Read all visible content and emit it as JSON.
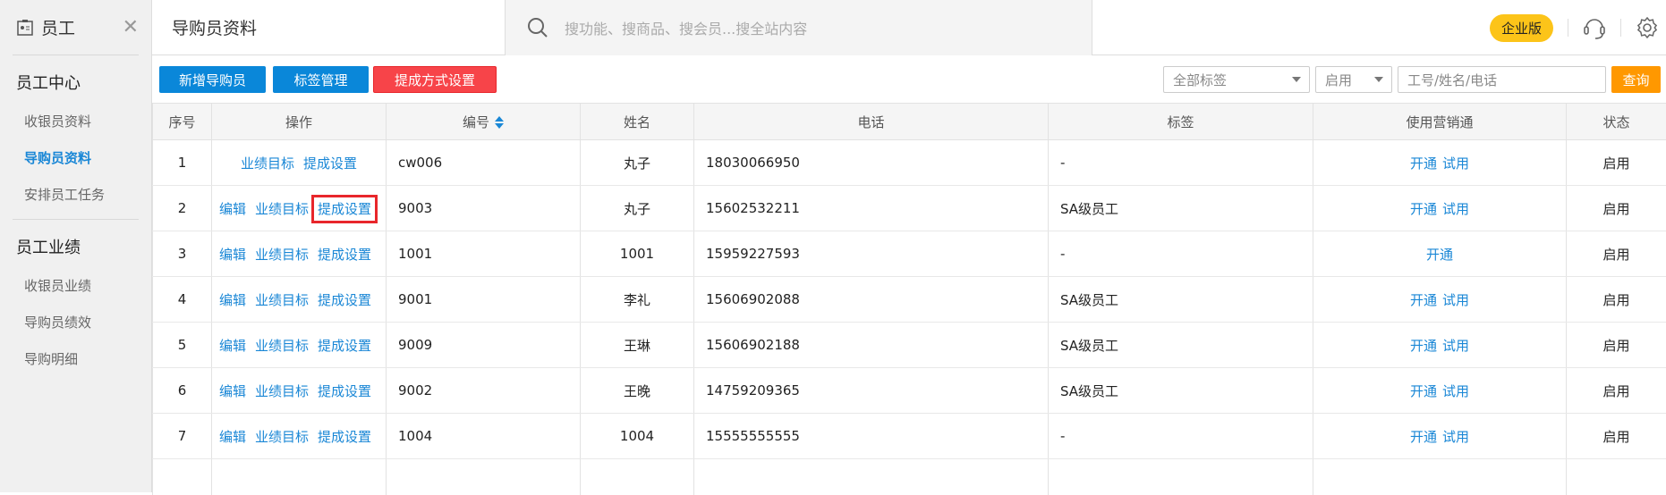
{
  "sidebar": {
    "title": "员工",
    "groups": [
      {
        "label": "员工中心",
        "items": [
          {
            "label": "收银员资料"
          },
          {
            "label": "导购员资料",
            "active": true
          },
          {
            "label": "安排员工任务"
          }
        ]
      },
      {
        "label": "员工业绩",
        "items": [
          {
            "label": "收银员业绩"
          },
          {
            "label": "导购员绩效"
          },
          {
            "label": "导购明细"
          }
        ]
      }
    ]
  },
  "header": {
    "title": "导购员资料",
    "search_placeholder": "搜功能、搜商品、搜会员...搜全站内容",
    "badge": "企业版"
  },
  "toolbar": {
    "add": "新增导购员",
    "tags": "标签管理",
    "commission": "提成方式设置",
    "tag_filter": "全部标签",
    "status_filter": "启用",
    "keyword_placeholder": "工号/姓名/电话",
    "query": "查询"
  },
  "colors": {
    "primary": "#0a87d9",
    "danger": "#f74449",
    "query": "#ff9800",
    "badge": "#fcc419",
    "link": "#1a87d6"
  },
  "table": {
    "headers": [
      "序号",
      "操作",
      "编号",
      "姓名",
      "电话",
      "标签",
      "使用营销通",
      "状态"
    ],
    "rows": [
      {
        "no": "1",
        "ops": [
          "业绩目标",
          "提成设置"
        ],
        "code": "cw006",
        "name": "丸子",
        "phone": "18030066950",
        "tag": "-",
        "mkt": [
          "开通",
          "试用"
        ],
        "status": "启用"
      },
      {
        "no": "2",
        "ops": [
          "编辑",
          "业绩目标",
          "提成设置"
        ],
        "code": "9003",
        "name": "丸子",
        "phone": "15602532211",
        "tag": "SA级员工",
        "mkt": [
          "开通",
          "试用"
        ],
        "status": "启用",
        "highlight": true
      },
      {
        "no": "3",
        "ops": [
          "编辑",
          "业绩目标",
          "提成设置"
        ],
        "code": "1001",
        "name": "1001",
        "phone": "15959227593",
        "tag": "-",
        "mkt": [
          "开通"
        ],
        "status": "启用"
      },
      {
        "no": "4",
        "ops": [
          "编辑",
          "业绩目标",
          "提成设置"
        ],
        "code": "9001",
        "name": "李礼",
        "phone": "15606902088",
        "tag": "SA级员工",
        "mkt": [
          "开通",
          "试用"
        ],
        "status": "启用"
      },
      {
        "no": "5",
        "ops": [
          "编辑",
          "业绩目标",
          "提成设置"
        ],
        "code": "9009",
        "name": "王琳",
        "phone": "15606902188",
        "tag": "SA级员工",
        "mkt": [
          "开通",
          "试用"
        ],
        "status": "启用"
      },
      {
        "no": "6",
        "ops": [
          "编辑",
          "业绩目标",
          "提成设置"
        ],
        "code": "9002",
        "name": "王晚",
        "phone": "14759209365",
        "tag": "SA级员工",
        "mkt": [
          "开通",
          "试用"
        ],
        "status": "启用"
      },
      {
        "no": "7",
        "ops": [
          "编辑",
          "业绩目标",
          "提成设置"
        ],
        "code": "1004",
        "name": "1004",
        "phone": "15555555555",
        "tag": "-",
        "mkt": [
          "开通",
          "试用"
        ],
        "status": "启用"
      }
    ]
  }
}
